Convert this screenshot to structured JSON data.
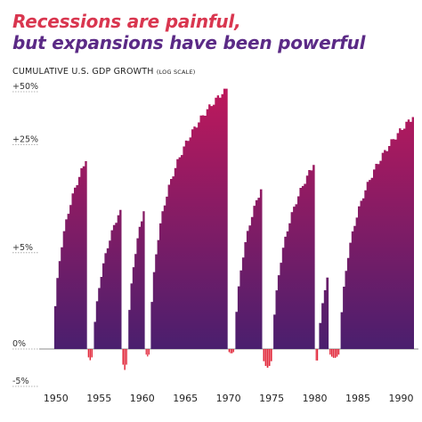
{
  "title_line1": "Recessions are painful,",
  "title_line2": "but expansions have been powerful",
  "subtitle_main": "CUMULATIVE U.S. GDP GROWTH",
  "subtitle_scale": "(LOG SCALE)",
  "colors": {
    "title1": "#d9364f",
    "title2": "#5b2a86",
    "expansion_top": "#c2185b",
    "expansion_bottom": "#4a1f6e",
    "recession": "#e2283b",
    "axis": "#666666"
  },
  "chart_data": {
    "type": "area",
    "y_scale": "log",
    "y_ticks": [
      {
        "value": 50,
        "label": "+50%"
      },
      {
        "value": 25,
        "label": "+25%"
      },
      {
        "value": 5,
        "label": "+5%"
      },
      {
        "value": 0,
        "label": "0%"
      },
      {
        "value": -5,
        "label": "-5%"
      }
    ],
    "x_ticks": [
      1950,
      1955,
      1960,
      1965,
      1970,
      1975,
      1980,
      1985,
      1990
    ],
    "xlim": [
      1949.4,
      1991.6
    ],
    "ylim": [
      -5,
      55
    ],
    "expansions": [
      {
        "start": 1949.8,
        "end": 1953.6,
        "peak": 20
      },
      {
        "start": 1954.4,
        "end": 1957.6,
        "peak": 10
      },
      {
        "start": 1958.4,
        "end": 1960.3,
        "peak": 9.8
      },
      {
        "start": 1961.0,
        "end": 1969.9,
        "peak": 52
      },
      {
        "start": 1970.8,
        "end": 1973.9,
        "peak": 13.5
      },
      {
        "start": 1975.2,
        "end": 1980.0,
        "peak": 19
      },
      {
        "start": 1980.5,
        "end": 1981.6,
        "peak": 3.1
      },
      {
        "start": 1983.0,
        "end": 1991.5,
        "peak": 36
      }
    ],
    "recessions": [
      {
        "start": 1953.6,
        "end": 1954.4,
        "trough": -1.5
      },
      {
        "start": 1957.6,
        "end": 1958.4,
        "trough": -2.8
      },
      {
        "start": 1960.3,
        "end": 1961.0,
        "trough": -1.0
      },
      {
        "start": 1969.9,
        "end": 1970.8,
        "trough": -0.6
      },
      {
        "start": 1973.9,
        "end": 1975.2,
        "trough": -2.5
      },
      {
        "start": 1980.0,
        "end": 1980.5,
        "trough": -1.8
      },
      {
        "start": 1981.6,
        "end": 1983.0,
        "trough": -1.2
      }
    ]
  }
}
